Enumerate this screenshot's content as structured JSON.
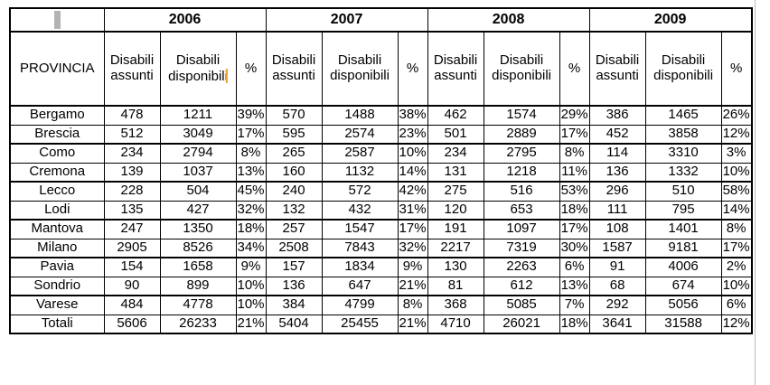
{
  "artifacts": {
    "margin_marker_color": "#b3b3b3",
    "caret_color": "#f2a73e",
    "page_edge_line_color": "#bdbdbd"
  },
  "table": {
    "corner_label": "PROVINCIA",
    "years": [
      "2006",
      "2007",
      "2008",
      "2009"
    ],
    "sub_headers": [
      "Disabili assunti",
      "Disabili disponibili",
      "%"
    ],
    "caret_position": {
      "year_index": 0,
      "sub_header_index": 1
    },
    "rows": [
      {
        "label": "Bergamo",
        "values": [
          "478",
          "1211",
          "39%",
          "570",
          "1488",
          "38%",
          "462",
          "1574",
          "29%",
          "386",
          "1465",
          "26%"
        ]
      },
      {
        "label": "Brescia",
        "values": [
          "512",
          "3049",
          "17%",
          "595",
          "2574",
          "23%",
          "501",
          "2889",
          "17%",
          "452",
          "3858",
          "12%"
        ]
      },
      {
        "label": "Como",
        "values": [
          "234",
          "2794",
          "8%",
          "265",
          "2587",
          "10%",
          "234",
          "2795",
          "8%",
          "114",
          "3310",
          "3%"
        ]
      },
      {
        "label": "Cremona",
        "values": [
          "139",
          "1037",
          "13%",
          "160",
          "1132",
          "14%",
          "131",
          "1218",
          "11%",
          "136",
          "1332",
          "10%"
        ]
      },
      {
        "label": "Lecco",
        "values": [
          "228",
          "504",
          "45%",
          "240",
          "572",
          "42%",
          "275",
          "516",
          "53%",
          "296",
          "510",
          "58%"
        ]
      },
      {
        "label": "Lodi",
        "values": [
          "135",
          "427",
          "32%",
          "132",
          "432",
          "31%",
          "120",
          "653",
          "18%",
          "111",
          "795",
          "14%"
        ]
      },
      {
        "label": "Mantova",
        "values": [
          "247",
          "1350",
          "18%",
          "257",
          "1547",
          "17%",
          "191",
          "1097",
          "17%",
          "108",
          "1401",
          "8%"
        ]
      },
      {
        "label": "Milano",
        "values": [
          "2905",
          "8526",
          "34%",
          "2508",
          "7843",
          "32%",
          "2217",
          "7319",
          "30%",
          "1587",
          "9181",
          "17%"
        ]
      },
      {
        "label": "Pavia",
        "values": [
          "154",
          "1658",
          "9%",
          "157",
          "1834",
          "9%",
          "130",
          "2263",
          "6%",
          "91",
          "4006",
          "2%"
        ]
      },
      {
        "label": "Sondrio",
        "values": [
          "90",
          "899",
          "10%",
          "136",
          "647",
          "21%",
          "81",
          "612",
          "13%",
          "68",
          "674",
          "10%"
        ]
      },
      {
        "label": "Varese",
        "values": [
          "484",
          "4778",
          "10%",
          "384",
          "4799",
          "8%",
          "368",
          "5085",
          "7%",
          "292",
          "5056",
          "6%"
        ]
      },
      {
        "label": "Totali",
        "values": [
          "5606",
          "26233",
          "21%",
          "5404",
          "25455",
          "21%",
          "4710",
          "26021",
          "18%",
          "3641",
          "31588",
          "12%"
        ]
      }
    ],
    "column_widths": {
      "provincia": 104,
      "assunti": 62,
      "disponibili": 84,
      "percent": 33
    }
  }
}
